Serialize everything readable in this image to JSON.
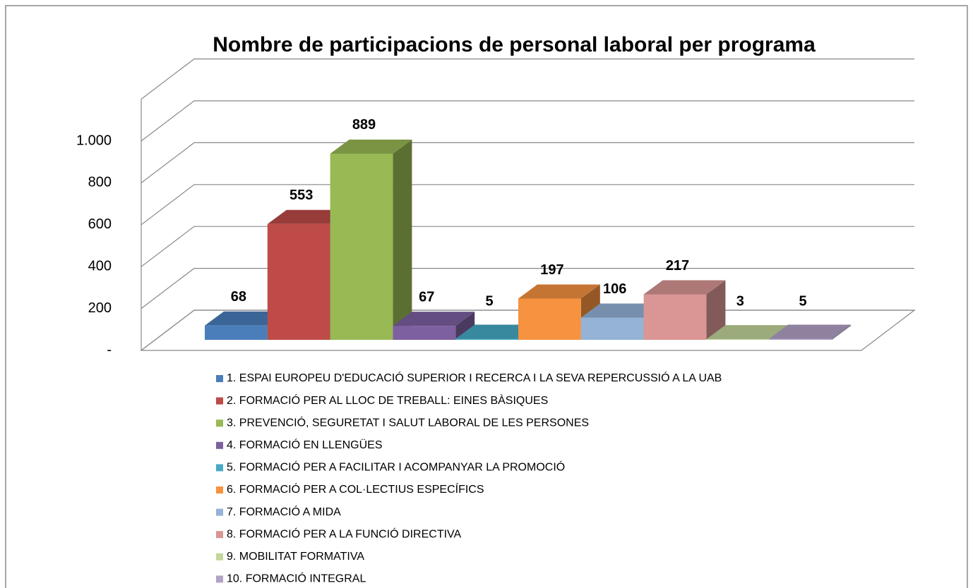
{
  "chart_data": {
    "type": "bar3d",
    "title": "Nombre de participacions de personal laboral per programa",
    "ylim": [
      0,
      1200
    ],
    "yticks": [
      {
        "value": 0,
        "label": "-"
      },
      200,
      400,
      600,
      800,
      {
        "value": 1000,
        "label": "1.000"
      }
    ],
    "grid": true,
    "legend": "bottom",
    "series": [
      {
        "name": "1. ESPAI EUROPEU D'EDUCACIÓ SUPERIOR I RECERCA I LA SEVA REPERCUSSIÓ A LA UAB",
        "color": "#4a7ebb",
        "values": [
          68
        ]
      },
      {
        "name": "2. FORMACIÓ PER AL LLOC DE TREBALL: EINES BÀSIQUES",
        "color": "#be4b48",
        "values": [
          553
        ]
      },
      {
        "name": "3. PREVENCIÓ, SEGURETAT I SALUT LABORAL DE LES PERSONES",
        "color": "#98b954",
        "values": [
          889
        ]
      },
      {
        "name": "4. FORMACIÓ EN LLENGÜES",
        "color": "#7d60a0",
        "values": [
          67
        ]
      },
      {
        "name": "5. FORMACIÓ PER A FACILITAR I ACOMPANYAR LA PROMOCIÓ",
        "color": "#46aac5",
        "values": [
          5
        ]
      },
      {
        "name": "6. FORMACIÓ PER A COL·LECTIUS ESPECÍFICS",
        "color": "#f69240",
        "values": [
          197
        ]
      },
      {
        "name": "7. FORMACIÓ A MIDA",
        "color": "#95b3d7",
        "values": [
          106
        ]
      },
      {
        "name": "8. FORMACIÓ PER A LA FUNCIÓ DIRECTIVA",
        "color": "#d99694",
        "values": [
          217
        ]
      },
      {
        "name": "9. MOBILITAT FORMATIVA",
        "color": "#c3d69b",
        "values": [
          3
        ]
      },
      {
        "name": "10. FORMACIÓ INTEGRAL",
        "color": "#b3a2c7",
        "values": [
          5
        ]
      }
    ]
  }
}
